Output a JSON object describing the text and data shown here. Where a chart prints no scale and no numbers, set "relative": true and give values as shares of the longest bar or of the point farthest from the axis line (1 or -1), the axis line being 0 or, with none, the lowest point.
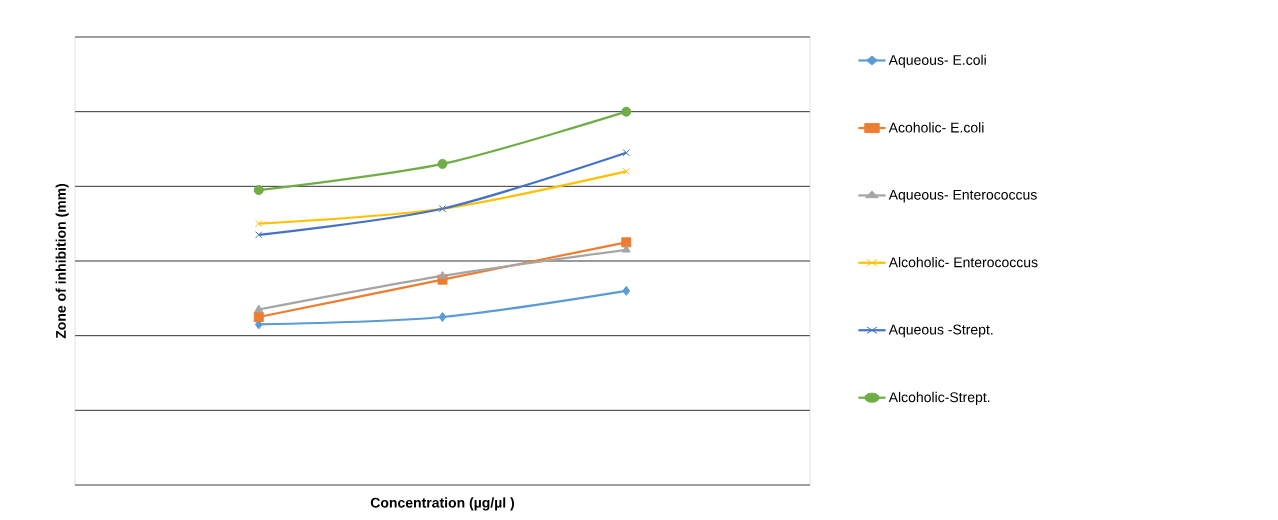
{
  "chart_data": {
    "type": "line",
    "relative": true,
    "xlabel": "Concentration (µg/µl )",
    "ylabel": "Zone of inhibition (mm)",
    "categories": [
      null,
      null,
      null
    ],
    "grid": "y",
    "legend": "right",
    "line_style": "solid",
    "series": [
      {
        "name": "Aqueous- E.coli",
        "color": "#5b9bd5",
        "marker": "diamond",
        "values": [
          0.43,
          0.45,
          0.52
        ]
      },
      {
        "name": "Acoholic- E.coli",
        "color": "#ed7d31",
        "marker": "square",
        "values": [
          0.45,
          0.55,
          0.65
        ]
      },
      {
        "name": "Aqueous- Enterococcus",
        "color": "#a5a5a5",
        "marker": "triangle",
        "values": [
          0.47,
          0.56,
          0.63
        ]
      },
      {
        "name": "Alcoholic- Enterococcus",
        "color": "#ffc000",
        "marker": "cross",
        "values": [
          0.7,
          0.74,
          0.84
        ]
      },
      {
        "name": "Aqueous -Strept.",
        "color": "#4472c4",
        "marker": "cross",
        "values": [
          0.67,
          0.74,
          0.89
        ]
      },
      {
        "name": "Alcoholic-Strept.",
        "color": "#70ad47",
        "marker": "circle",
        "values": [
          0.79,
          0.86,
          1.0
        ]
      }
    ]
  }
}
